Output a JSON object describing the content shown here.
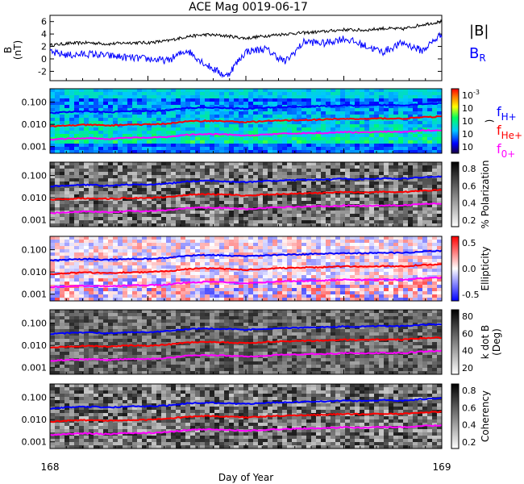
{
  "title": "ACE Mag 0019-06-17",
  "xaxis": {
    "label": "Day of Year",
    "range": [
      168,
      169
    ],
    "ticks": [
      "168",
      "169"
    ]
  },
  "panel_labels": {
    "b_ylabel": "B",
    "b_unit": "(nT)",
    "b_legend_mag": "|B|",
    "b_legend_r": "B",
    "b_legend_r_sub": "R",
    "power_cb_label": ")",
    "f_main": "f",
    "f_h_sub": "H+",
    "f_he_sub": "He+",
    "f_o_sub": "0+",
    "pol_cb_label": "% Polarization",
    "ell_cb_label": "Ellipticity",
    "kdb_cb_label1": "k dot B",
    "kdb_cb_label2": "(Deg)",
    "coh_cb_label": "Coherency"
  },
  "freq_ticks": [
    "0.100",
    "0.010",
    "0.001"
  ],
  "colorbars": {
    "power": [
      "10",
      "10",
      "10",
      "10",
      "10"
    ],
    "power_top_exp": "-3",
    "polarization": [
      "0.8",
      "0.6",
      "0.4",
      "0.2"
    ],
    "ellipticity": [
      "0.5",
      "0.0",
      "-0.5"
    ],
    "kdotb": [
      "80",
      "60",
      "40",
      "20"
    ],
    "coherency": [
      "0.8",
      "0.6",
      "0.4",
      "0.2"
    ]
  },
  "b_yticks": [
    "6",
    "4",
    "2",
    "0",
    "-2"
  ],
  "colors": {
    "bmag": "#000000",
    "br": "#0000ff",
    "fH": "#0000ff",
    "fHe": "#ff0000",
    "fO": "#ff00ff"
  },
  "chart_data": {
    "type": "line",
    "title": "ACE Mag 0019-06-17",
    "xlabel": "Day of Year",
    "xlim": [
      168,
      169
    ],
    "panels": [
      {
        "kind": "line",
        "ylabel": "B (nT)",
        "ylim": [
          -3.5,
          7
        ],
        "series": [
          {
            "name": "|B|",
            "x": [
              168.0,
              168.05,
              168.1,
              168.15,
              168.2,
              168.25,
              168.3,
              168.35,
              168.4,
              168.45,
              168.5,
              168.55,
              168.6,
              168.65,
              168.7,
              168.75,
              168.8,
              168.85,
              168.9,
              168.95,
              169.0
            ],
            "values": [
              2.2,
              2.5,
              2.6,
              2.4,
              2.6,
              2.6,
              2.9,
              3.6,
              3.9,
              3.7,
              3.3,
              3.7,
              4.0,
              4.2,
              4.4,
              4.7,
              4.6,
              4.9,
              4.8,
              5.5,
              6.0
            ]
          },
          {
            "name": "B_R",
            "x": [
              168.0,
              168.05,
              168.1,
              168.15,
              168.2,
              168.25,
              168.3,
              168.35,
              168.4,
              168.45,
              168.5,
              168.55,
              168.6,
              168.65,
              168.7,
              168.75,
              168.8,
              168.85,
              168.9,
              168.95,
              169.0
            ],
            "values": [
              1.0,
              0.6,
              0.8,
              0.5,
              0.2,
              0.0,
              -0.3,
              1.4,
              -1.0,
              -2.8,
              1.2,
              1.6,
              -0.5,
              2.8,
              2.5,
              3.3,
              2.2,
              1.1,
              2.6,
              1.3,
              4.0
            ]
          }
        ]
      },
      {
        "kind": "spectrogram",
        "colorbar": "power",
        "ylim": [
          0.0005,
          0.4
        ],
        "yscale": "log"
      },
      {
        "kind": "spectrogram",
        "colorbar": "% Polarization",
        "ylim": [
          0.0005,
          0.4
        ],
        "yscale": "log"
      },
      {
        "kind": "spectrogram",
        "colorbar": "Ellipticity",
        "ylim": [
          0.0005,
          0.4
        ],
        "yscale": "log"
      },
      {
        "kind": "spectrogram",
        "colorbar": "k dot B (Deg)",
        "ylim": [
          0.0005,
          0.4
        ],
        "yscale": "log"
      },
      {
        "kind": "spectrogram",
        "colorbar": "Coherency",
        "ylim": [
          0.0005,
          0.4
        ],
        "yscale": "log"
      }
    ],
    "gyrofrequencies": {
      "x": [
        168.0,
        168.05,
        168.1,
        168.15,
        168.2,
        168.25,
        168.3,
        168.35,
        168.4,
        168.45,
        168.5,
        168.55,
        168.6,
        168.65,
        168.7,
        168.75,
        168.8,
        168.85,
        168.9,
        168.95,
        169.0
      ],
      "fH+": [
        0.032,
        0.036,
        0.038,
        0.035,
        0.039,
        0.039,
        0.043,
        0.054,
        0.058,
        0.055,
        0.05,
        0.056,
        0.06,
        0.063,
        0.066,
        0.071,
        0.069,
        0.074,
        0.072,
        0.083,
        0.09
      ],
      "fHe+": [
        0.008,
        0.009,
        0.0095,
        0.0088,
        0.0098,
        0.0098,
        0.0108,
        0.0135,
        0.0145,
        0.0138,
        0.0125,
        0.014,
        0.015,
        0.0158,
        0.0165,
        0.0178,
        0.0173,
        0.0185,
        0.018,
        0.0208,
        0.0225
      ],
      "fO+": [
        0.002,
        0.0023,
        0.0024,
        0.0022,
        0.0025,
        0.0025,
        0.0027,
        0.0034,
        0.0036,
        0.0035,
        0.0031,
        0.0035,
        0.0038,
        0.004,
        0.0041,
        0.0045,
        0.0043,
        0.0046,
        0.0045,
        0.0052,
        0.0056
      ]
    }
  }
}
